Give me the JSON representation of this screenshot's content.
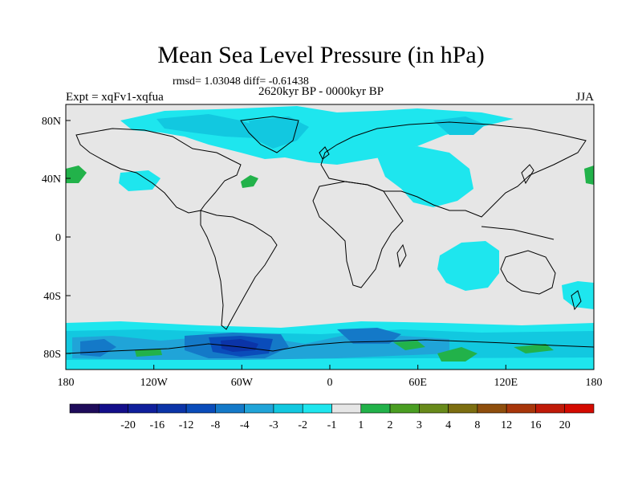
{
  "title": "Mean Sea Level Pressure (in hPa)",
  "stats": "rmsd= 1.03048 diff= -0.61438",
  "period": "2620kyr BP - 0000kyr BP",
  "experiment": "Expt = xqFv1-xqfua",
  "season": "JJA",
  "x_ticks": [
    "180",
    "120W",
    "60W",
    "0",
    "60E",
    "120E",
    "180"
  ],
  "y_ticks": [
    "80N",
    "40N",
    "0",
    "40S",
    "80S"
  ],
  "colorbar": {
    "colors": [
      "#1e0b5a",
      "#130e8a",
      "#0f1f9c",
      "#0b34a8",
      "#0a4cba",
      "#1479c8",
      "#20a4d8",
      "#12c8e0",
      "#1ee6ee",
      "#e6e6e6",
      "#22b24a",
      "#4a9e22",
      "#688a1a",
      "#7c6e10",
      "#8e4e0c",
      "#a8360a",
      "#c01a08",
      "#d40a00"
    ],
    "labels": [
      "-20",
      "-16",
      "-12",
      "-8",
      "-4",
      "-3",
      "-2",
      "-1",
      "1",
      "2",
      "3",
      "4",
      "8",
      "12",
      "16",
      "20"
    ]
  },
  "palette": {
    "land_neutral": "#e6e6e6",
    "light_cyan": "#1ee6ee",
    "cyan": "#12c8e0",
    "mid_blue": "#20a4d8",
    "blue": "#1479c8",
    "deep_blue": "#0a4cba",
    "darker_blue": "#0b34a8",
    "green": "#22b24a",
    "coast": "#000000"
  }
}
